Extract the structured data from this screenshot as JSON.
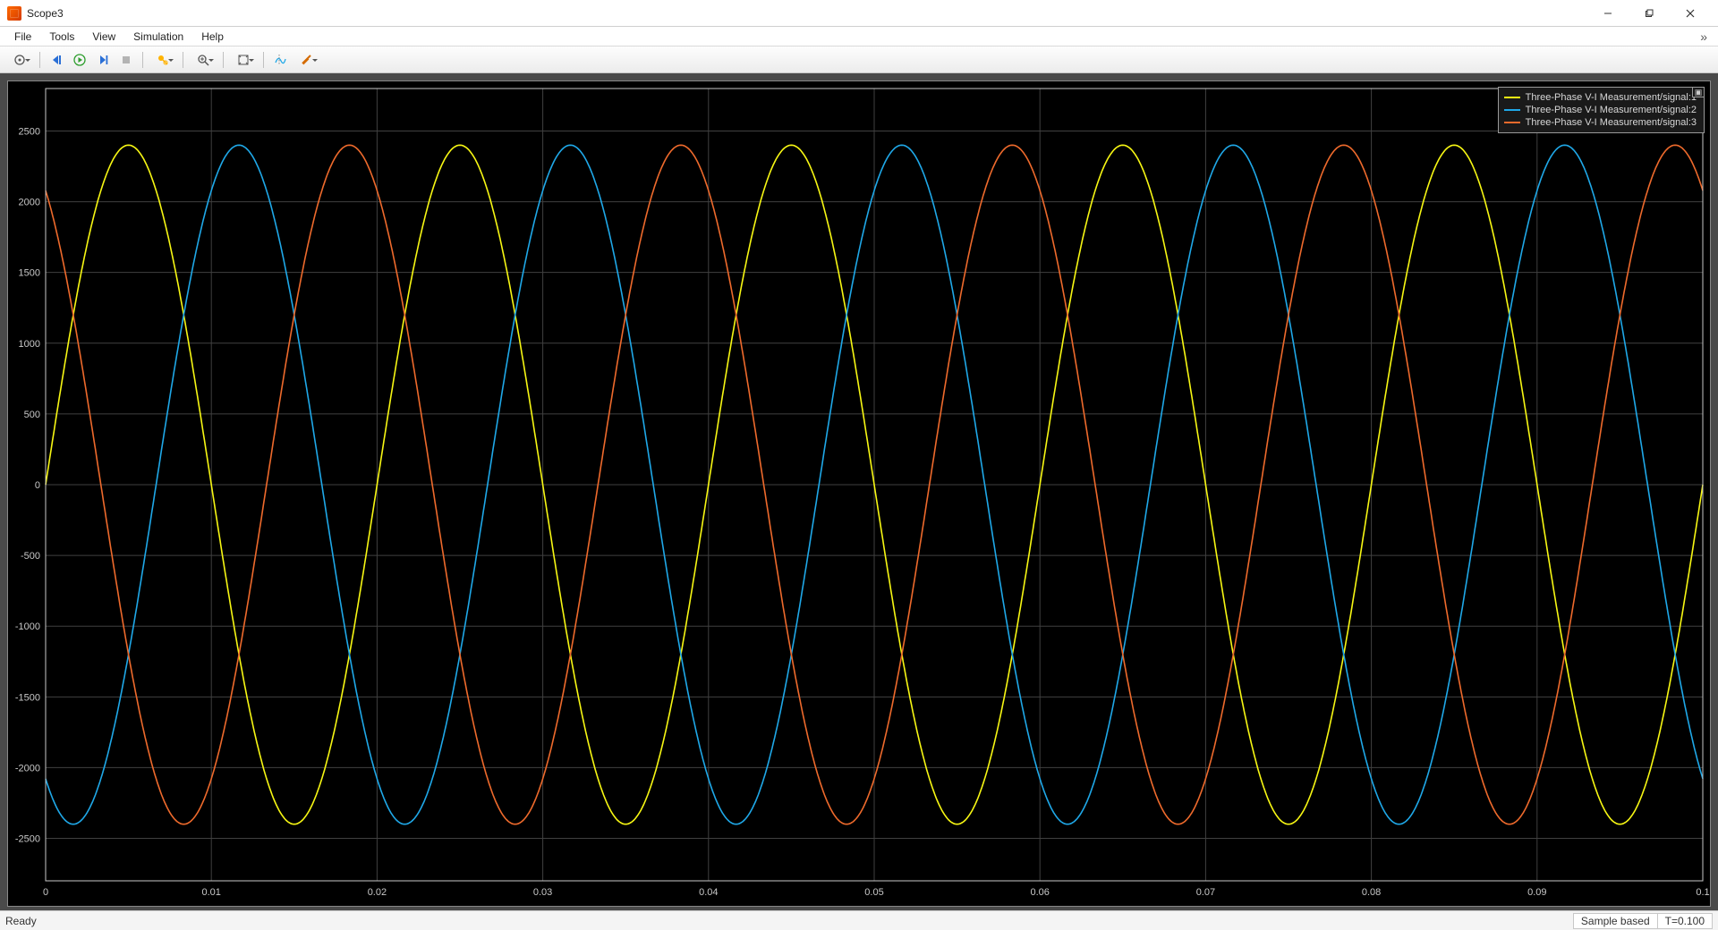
{
  "window": {
    "title": "Scope3",
    "controls": {
      "minimize": "–",
      "maximize": "❐",
      "close": "✕"
    }
  },
  "menu": {
    "items": [
      "File",
      "Tools",
      "View",
      "Simulation",
      "Help"
    ],
    "overflow": "»"
  },
  "toolbar": {
    "buttons": [
      {
        "name": "print-icon",
        "dd": true
      },
      {
        "sep": true
      },
      {
        "name": "step-back-icon",
        "dd": false
      },
      {
        "name": "run-icon",
        "dd": false,
        "color": "#2e9e2e"
      },
      {
        "name": "step-fwd-icon",
        "dd": false,
        "color": "#2a6fd6"
      },
      {
        "name": "stop-icon",
        "dd": false,
        "disabled": true
      },
      {
        "sep": true
      },
      {
        "name": "highlight-icon",
        "dd": true
      },
      {
        "sep": true
      },
      {
        "name": "zoom-icon",
        "dd": true
      },
      {
        "sep": true
      },
      {
        "name": "autoscale-icon",
        "dd": true
      },
      {
        "sep": true
      },
      {
        "name": "cursor-icon",
        "dd": false
      },
      {
        "name": "measure-icon",
        "dd": true
      }
    ]
  },
  "plot": {
    "type": "line",
    "background_color": "#000000",
    "grid_color": "#404040",
    "axis_color": "#c8c8c8",
    "tick_color": "#c8c8c8",
    "tick_fontsize": 11,
    "line_width": 1.6,
    "xlim": [
      0,
      0.1
    ],
    "ylim": [
      -2800,
      2800
    ],
    "xticks": [
      0,
      0.01,
      0.02,
      0.03,
      0.04,
      0.05,
      0.06,
      0.07,
      0.08,
      0.09,
      0.1
    ],
    "xticklabels": [
      "0",
      "0.01",
      "0.02",
      "0.03",
      "0.04",
      "0.05",
      "0.06",
      "0.07",
      "0.08",
      "0.09",
      "0.1"
    ],
    "yticks": [
      -2500,
      -2000,
      -1500,
      -1000,
      -500,
      0,
      500,
      1000,
      1500,
      2000,
      2500
    ],
    "yticklabels": [
      "-2500",
      "-2000",
      "-1500",
      "-1000",
      "-500",
      "0",
      "500",
      "1000",
      "1500",
      "2000",
      "2500"
    ],
    "signals": [
      {
        "label": "Three-Phase V-I Measurement/signal:1",
        "color": "#f7f713",
        "amplitude": 2400,
        "frequency_hz": 50,
        "phase_deg": 0
      },
      {
        "label": "Three-Phase V-I Measurement/signal:2",
        "color": "#1fa8e8",
        "amplitude": 2400,
        "frequency_hz": 50,
        "phase_deg": -120
      },
      {
        "label": "Three-Phase V-I Measurement/signal:3",
        "color": "#ee6a2c",
        "amplitude": 2400,
        "frequency_hz": 50,
        "phase_deg": 120
      }
    ],
    "samples": 1200
  },
  "legend": {
    "close_glyph": "▣"
  },
  "status": {
    "left": "Ready",
    "mode": "Sample based",
    "time": "T=0.100"
  }
}
